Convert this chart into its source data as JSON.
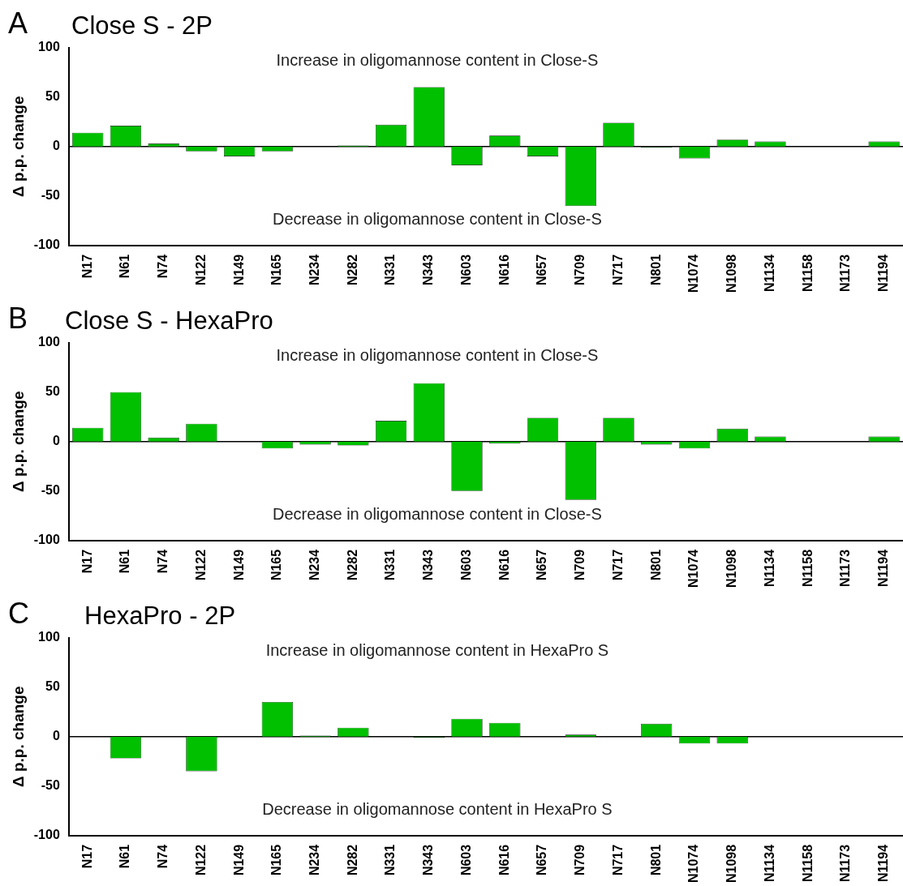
{
  "chart_data": [
    {
      "type": "bar",
      "title": "Close S - 2P",
      "ylabel": "Δ p.p. change",
      "annotations": [
        "A",
        "Increase in oligomannose content in Close-S",
        "Decrease in oligomannose content in Close-S"
      ],
      "categories": [
        "N17",
        "N61",
        "N74",
        "N122",
        "N149",
        "N165",
        "N234",
        "N282",
        "N331",
        "N343",
        "N603",
        "N616",
        "N657",
        "N709",
        "N717",
        "N801",
        "N1074",
        "N1098",
        "N1134",
        "N1158",
        "N1173",
        "N1194"
      ],
      "values": [
        14,
        21,
        3,
        -5,
        -10,
        -5,
        0,
        1,
        22,
        60,
        -19,
        11,
        -10,
        -60,
        24,
        -1,
        -12,
        7,
        5,
        0,
        0,
        5
      ],
      "color": "#00c000",
      "ylim": [
        -100,
        100
      ],
      "yticks": [
        -100,
        -50,
        0,
        50,
        100
      ]
    },
    {
      "type": "bar",
      "title": "Close S  - HexaPro",
      "ylabel": "Δ p.p. change",
      "annotations": [
        "B",
        "Increase in oligomannose content in Close-S",
        "Decrease in oligomannose content in Close-S"
      ],
      "categories": [
        "N17",
        "N61",
        "N74",
        "N122",
        "N149",
        "N165",
        "N234",
        "N282",
        "N331",
        "N343",
        "N603",
        "N616",
        "N657",
        "N709",
        "N717",
        "N801",
        "N1074",
        "N1098",
        "N1134",
        "N1158",
        "N1173",
        "N1194"
      ],
      "values": [
        14,
        50,
        4,
        18,
        0,
        -7,
        -3,
        -4,
        21,
        59,
        -50,
        -2,
        24,
        -59,
        24,
        -3,
        -7,
        13,
        5,
        0,
        0,
        5
      ],
      "color": "#00c000",
      "ylim": [
        -100,
        100
      ],
      "yticks": [
        -100,
        -50,
        0,
        50,
        100
      ]
    },
    {
      "type": "bar",
      "title": "HexaPro - 2P",
      "ylabel": "Δ p.p. change",
      "annotations": [
        "C",
        "Increase in oligomannose content in HexaPro S",
        "Decrease in oligomannose content in HexaPro S"
      ],
      "categories": [
        "N17",
        "N61",
        "N74",
        "N122",
        "N149",
        "N165",
        "N234",
        "N282",
        "N331",
        "N343",
        "N603",
        "N616",
        "N657",
        "N709",
        "N717",
        "N801",
        "N1074",
        "N1098",
        "N1134",
        "N1158",
        "N1173",
        "N1194"
      ],
      "values": [
        0,
        -22,
        0,
        -35,
        0,
        35,
        1,
        9,
        0,
        -1,
        18,
        14,
        0,
        2,
        0,
        13,
        -7,
        -7,
        0,
        0,
        0,
        0
      ],
      "color": "#00c000",
      "ylim": [
        -100,
        100
      ],
      "yticks": [
        -100,
        -50,
        0,
        50,
        100
      ]
    }
  ]
}
